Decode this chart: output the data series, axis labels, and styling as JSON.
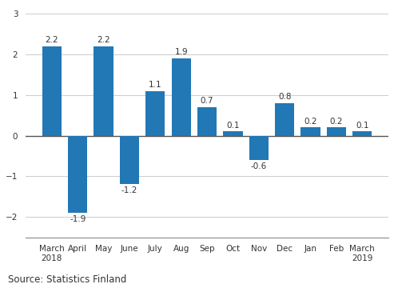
{
  "categories": [
    "March\n2018",
    "April",
    "May",
    "June",
    "July",
    "Aug",
    "Sep",
    "Oct",
    "Nov",
    "Dec",
    "Jan",
    "Feb",
    "March\n2019"
  ],
  "values": [
    2.2,
    -1.9,
    2.2,
    -1.2,
    1.1,
    1.9,
    0.7,
    0.1,
    -0.6,
    0.8,
    0.2,
    0.2,
    0.1
  ],
  "bar_color": "#2277b5",
  "ylim": [
    -2.5,
    3.2
  ],
  "yticks": [
    -2,
    -1,
    0,
    1,
    2,
    3
  ],
  "source_text": "Source: Statistics Finland",
  "bar_width": 0.75,
  "label_fontsize": 7.5,
  "tick_fontsize": 7.5,
  "source_fontsize": 8.5
}
